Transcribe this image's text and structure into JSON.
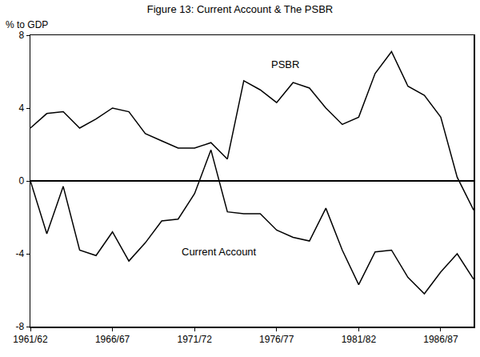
{
  "chart_data": {
    "type": "line",
    "title": "Figure 13: Current Account & The PSBR",
    "y_label": "% to GDP",
    "categories": [
      "1961/62",
      null,
      null,
      null,
      null,
      "1966/67",
      null,
      null,
      null,
      null,
      "1971/72",
      null,
      null,
      null,
      null,
      "1976/77",
      null,
      null,
      null,
      null,
      "1981/82",
      null,
      null,
      null,
      null,
      "1986/87",
      null,
      null
    ],
    "series": [
      {
        "name": "PSBR",
        "color": "#000000",
        "values": [
          2.9,
          3.7,
          3.8,
          2.9,
          3.4,
          4.0,
          3.8,
          2.6,
          2.2,
          1.8,
          1.8,
          2.1,
          1.2,
          5.5,
          5.0,
          4.3,
          5.4,
          5.1,
          4.0,
          3.1,
          3.5,
          5.9,
          7.1,
          5.2,
          4.7,
          3.5,
          0.2,
          -1.6
        ]
      },
      {
        "name": "Current Account",
        "color": "#000000",
        "values": [
          0,
          -2.9,
          -0.3,
          -3.8,
          -4.1,
          -2.8,
          -4.4,
          -3.4,
          -2.2,
          -2.1,
          -0.7,
          1.7,
          -1.7,
          -1.8,
          -1.8,
          -2.7,
          -3.1,
          -3.3,
          -1.5,
          -3.8,
          -5.7,
          -3.9,
          -3.8,
          -5.3,
          -6.2,
          -5.0,
          -4.0,
          -5.4
        ]
      }
    ],
    "annotations": [
      {
        "text": "PSBR",
        "x": 15.5,
        "y": 6.4
      },
      {
        "text": "Current Account",
        "x": 11.5,
        "y": -3.9
      }
    ],
    "ylim": [
      -8,
      8
    ],
    "yticks": [
      -8,
      -4,
      0,
      4,
      8
    ],
    "grid": false
  }
}
